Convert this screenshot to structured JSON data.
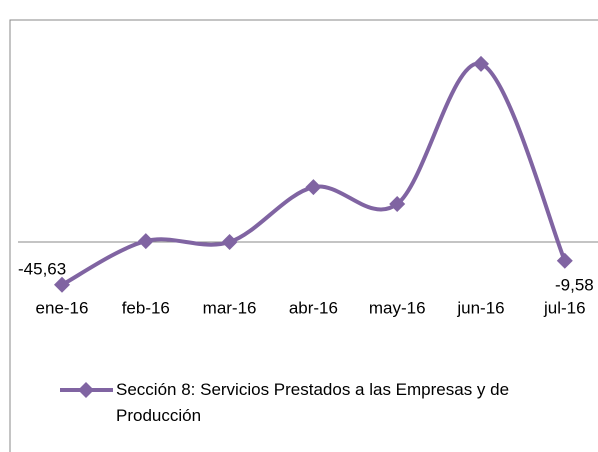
{
  "chart_data": {
    "type": "line",
    "categories": [
      "ene-16",
      "feb-16",
      "mar-16",
      "abr-16",
      "may-16",
      "jun-16",
      "jul-16"
    ],
    "series": [
      {
        "name": "Sección 8: Servicios Prestados a las Empresas y de Producción",
        "color": "#8064a2",
        "values": [
          -45.63,
          20,
          18.6,
          101,
          75.7,
          286,
          -9.58
        ],
        "value_labels": [
          "-45,63",
          null,
          null,
          null,
          null,
          null,
          "-9,58"
        ]
      }
    ],
    "ylim": [
      -100,
      300
    ],
    "legend": "bottom"
  }
}
